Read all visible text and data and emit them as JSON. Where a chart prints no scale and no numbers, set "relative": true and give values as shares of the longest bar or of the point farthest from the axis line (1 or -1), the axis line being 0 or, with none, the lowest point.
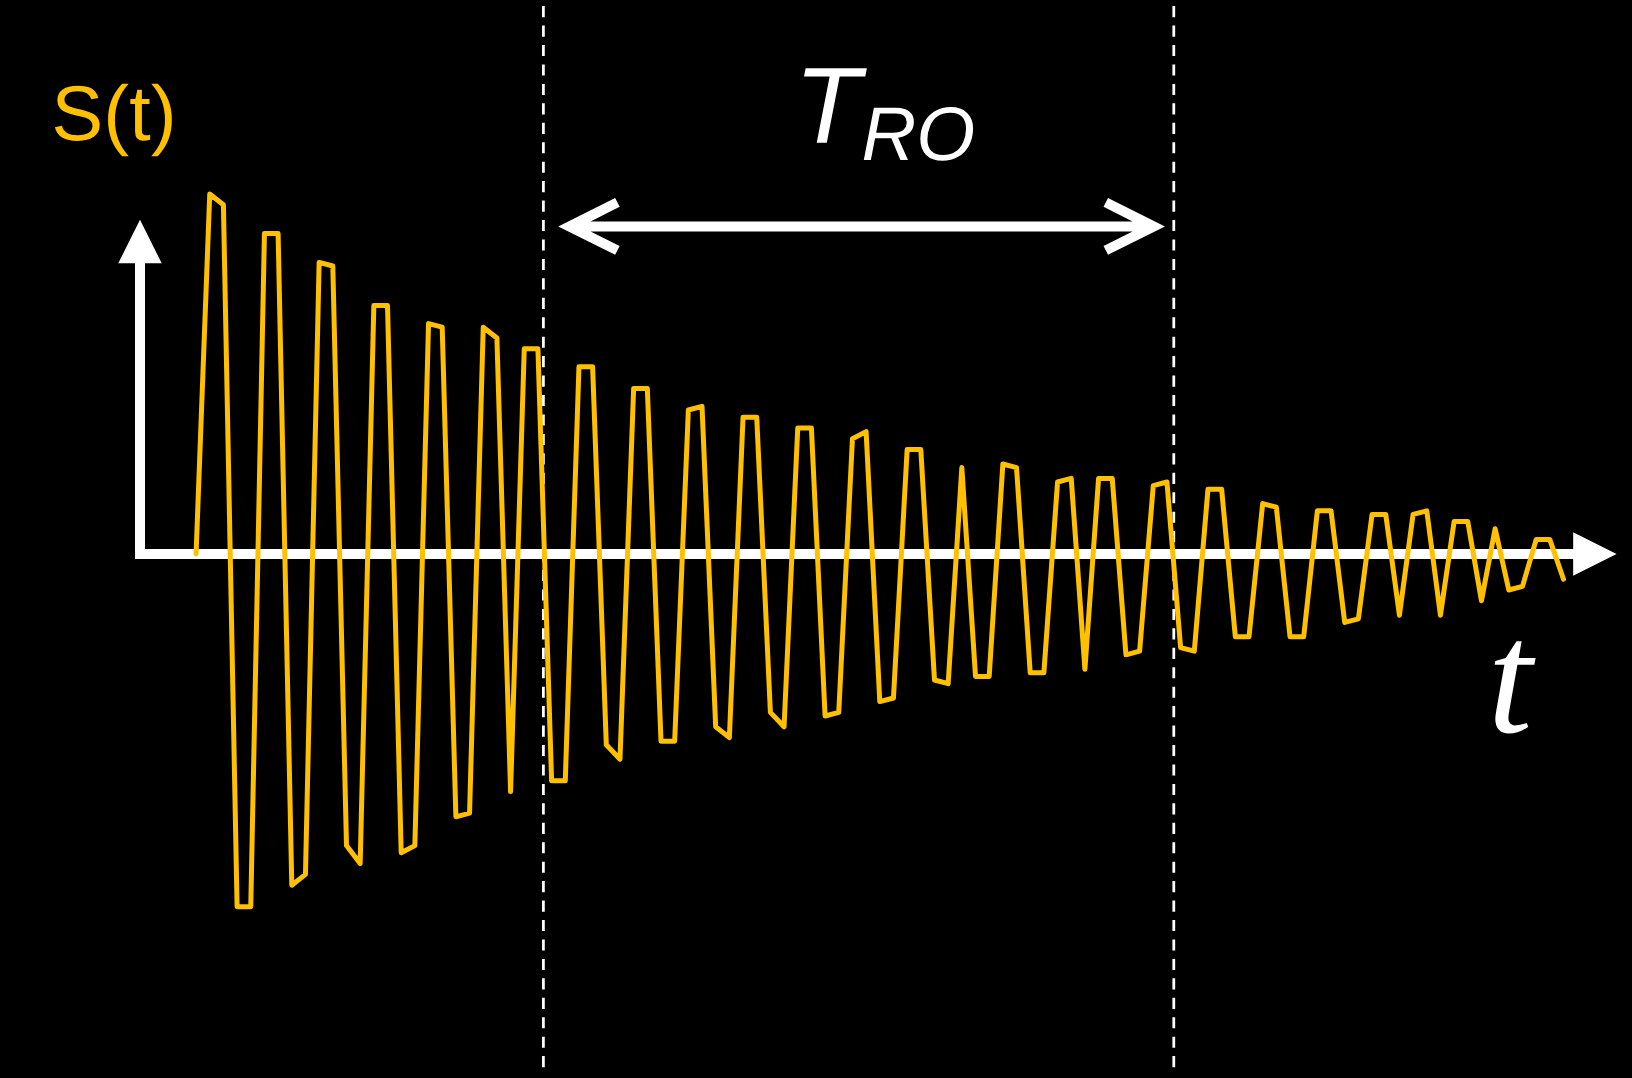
{
  "chart_data": {
    "type": "line",
    "ylabel": "S(t)",
    "xlabel": "t",
    "annotations": [
      "T$_{RO}$"
    ],
    "relative": true,
    "categories": [
      null,
      null,
      null,
      null,
      null,
      null,
      null,
      null,
      null,
      null,
      null,
      null,
      null,
      null,
      null,
      null,
      null,
      null,
      null,
      null,
      null,
      null,
      null,
      null,
      null,
      null,
      null,
      null,
      null,
      null,
      null,
      null,
      null,
      null,
      null,
      null,
      null,
      null,
      null,
      null,
      null,
      null,
      null,
      null,
      null,
      null,
      null,
      null,
      null,
      null,
      null,
      null,
      null,
      null,
      null,
      null,
      null,
      null,
      null,
      null,
      null,
      null,
      null,
      null,
      null,
      null,
      null,
      null,
      null,
      null,
      null,
      null,
      null,
      null,
      null,
      null,
      null,
      null,
      null,
      null,
      null,
      null,
      null,
      null,
      null,
      null,
      null,
      null,
      null,
      null,
      null,
      null,
      null,
      null,
      null,
      null,
      null,
      null,
      null,
      null,
      null
    ],
    "series": [
      {
        "color": "#ffc000",
        "values": [
          0,
          1.0,
          0.97,
          -0.98,
          -0.98,
          0.89,
          0.89,
          -0.92,
          -0.89,
          0.81,
          0.8,
          -0.81,
          -0.86,
          0.69,
          0.69,
          -0.83,
          -0.81,
          0.64,
          0.63,
          -0.73,
          -0.72,
          0.63,
          0.6,
          -0.66,
          0.57,
          0.57,
          -0.63,
          -0.63,
          0.52,
          0.52,
          -0.53,
          -0.57,
          0.46,
          0.46,
          -0.52,
          -0.52,
          0.4,
          0.41,
          -0.48,
          -0.51,
          0.38,
          0.38,
          -0.44,
          -0.48,
          0.35,
          0.35,
          -0.45,
          -0.44,
          0.32,
          0.34,
          -0.41,
          -0.4,
          0.29,
          0.29,
          -0.35,
          -0.36,
          0.24,
          -0.34,
          -0.34,
          0.25,
          0.24,
          -0.33,
          -0.33,
          0.2,
          0.21,
          -0.32,
          0.21,
          0.21,
          -0.28,
          -0.27,
          0.19,
          0.2,
          -0.26,
          -0.27,
          0.18,
          0.18,
          -0.23,
          -0.23,
          0.14,
          0.13,
          -0.23,
          -0.23,
          0.12,
          0.12,
          -0.19,
          -0.18,
          0.11,
          0.11,
          -0.17,
          0.11,
          0.12,
          -0.17,
          0.09,
          0.09,
          -0.13,
          0.07,
          -0.1,
          -0.09,
          0.04,
          0.04,
          -0.07
        ]
      }
    ]
  }
}
